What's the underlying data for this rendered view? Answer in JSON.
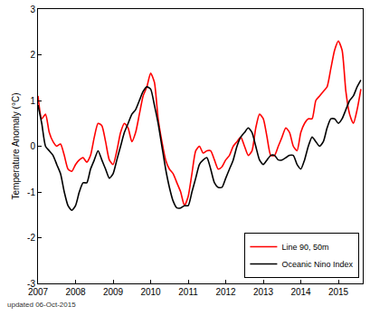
{
  "chart_data": {
    "type": "line",
    "y_label": "Temperature Anomaly (°C)",
    "annotations": [
      "updated 06-Oct-2015"
    ],
    "x": [
      2007.0,
      2007.1,
      2007.2,
      2007.3,
      2007.4,
      2007.5,
      2007.6,
      2007.7,
      2007.8,
      2007.9,
      2008.0,
      2008.1,
      2008.2,
      2008.3,
      2008.4,
      2008.5,
      2008.6,
      2008.7,
      2008.8,
      2008.9,
      2009.0,
      2009.1,
      2009.2,
      2009.3,
      2009.4,
      2009.5,
      2009.6,
      2009.7,
      2009.8,
      2009.9,
      2010.0,
      2010.1,
      2010.2,
      2010.3,
      2010.4,
      2010.5,
      2010.6,
      2010.7,
      2010.8,
      2010.9,
      2011.0,
      2011.1,
      2011.2,
      2011.3,
      2011.4,
      2011.5,
      2011.6,
      2011.7,
      2011.8,
      2011.9,
      2012.0,
      2012.1,
      2012.2,
      2012.3,
      2012.4,
      2012.5,
      2012.6,
      2012.7,
      2012.8,
      2012.9,
      2013.0,
      2013.1,
      2013.2,
      2013.3,
      2013.4,
      2013.5,
      2013.6,
      2013.7,
      2013.8,
      2013.9,
      2014.0,
      2014.1,
      2014.2,
      2014.3,
      2014.4,
      2014.5,
      2014.6,
      2014.7,
      2014.8,
      2014.9,
      2015.0,
      2015.1,
      2015.2,
      2015.3,
      2015.4,
      2015.5,
      2015.6
    ],
    "series": [
      {
        "name": "Line 90, 50m",
        "color": "#ff0000",
        "line_style": "solid",
        "values": [
          1.1,
          0.6,
          0.7,
          0.3,
          0.1,
          0.0,
          0.05,
          -0.2,
          -0.5,
          -0.55,
          -0.4,
          -0.3,
          -0.25,
          -0.35,
          -0.2,
          0.2,
          0.5,
          0.45,
          0.1,
          -0.3,
          -0.4,
          -0.1,
          0.3,
          0.5,
          0.4,
          0.1,
          0.3,
          0.7,
          1.1,
          1.3,
          1.6,
          1.4,
          0.6,
          0.1,
          -0.3,
          -0.5,
          -0.6,
          -0.8,
          -1.0,
          -1.3,
          -1.1,
          -0.6,
          -0.1,
          0.0,
          -0.15,
          -0.1,
          -0.1,
          -0.3,
          -0.5,
          -0.45,
          -0.3,
          -0.2,
          0.0,
          0.1,
          0.2,
          0.0,
          -0.2,
          -0.1,
          0.4,
          0.7,
          0.6,
          0.2,
          -0.2,
          -0.2,
          0.0,
          0.2,
          0.4,
          0.3,
          0.0,
          -0.1,
          0.3,
          0.5,
          0.6,
          0.6,
          1.0,
          1.1,
          1.2,
          1.3,
          1.7,
          2.1,
          2.3,
          2.1,
          1.2,
          0.7,
          0.5,
          0.8,
          1.25
        ]
      },
      {
        "name": "Oceanic Nino Index",
        "color": "#000000",
        "line_style": "solid",
        "values": [
          0.9,
          0.5,
          0.0,
          -0.1,
          -0.2,
          -0.4,
          -0.6,
          -1.0,
          -1.3,
          -1.4,
          -1.3,
          -1.0,
          -0.8,
          -0.8,
          -0.5,
          -0.3,
          -0.1,
          -0.3,
          -0.5,
          -0.7,
          -0.6,
          -0.3,
          0.0,
          0.3,
          0.5,
          0.7,
          0.8,
          1.0,
          1.2,
          1.3,
          1.25,
          0.9,
          0.5,
          0.0,
          -0.5,
          -0.9,
          -1.2,
          -1.35,
          -1.35,
          -1.3,
          -1.3,
          -1.0,
          -0.7,
          -0.4,
          -0.3,
          -0.25,
          -0.5,
          -0.8,
          -0.9,
          -0.9,
          -0.7,
          -0.5,
          -0.3,
          0.0,
          0.2,
          0.3,
          0.4,
          0.3,
          0.0,
          -0.3,
          -0.4,
          -0.3,
          -0.2,
          -0.2,
          -0.3,
          -0.3,
          -0.25,
          -0.2,
          -0.2,
          -0.4,
          -0.5,
          -0.3,
          0.0,
          0.2,
          0.1,
          0.0,
          0.1,
          0.4,
          0.6,
          0.6,
          0.5,
          0.6,
          0.8,
          1.0,
          1.1,
          1.3,
          1.45
        ]
      }
    ],
    "xlim": [
      2007,
      2015.65
    ],
    "xticks": [
      2007,
      2008,
      2009,
      2010,
      2011,
      2012,
      2013,
      2014,
      2015
    ],
    "ylim": [
      -3,
      3
    ],
    "yticks": [
      -3,
      -2,
      -1,
      0,
      1,
      2,
      3
    ],
    "grid": false,
    "legend": "lower right"
  }
}
